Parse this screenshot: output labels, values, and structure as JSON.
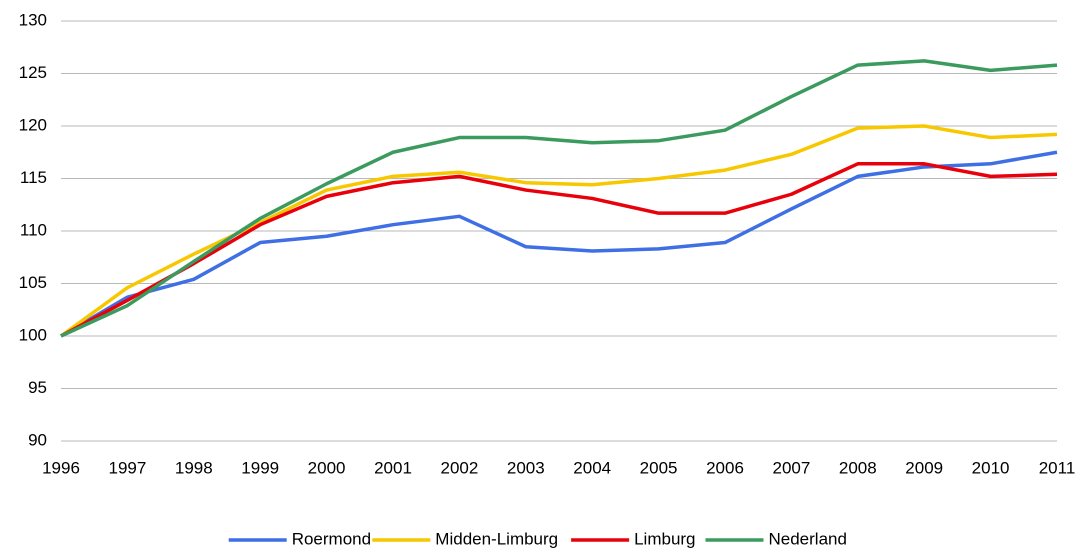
{
  "chart_data": {
    "type": "line",
    "categories": [
      "1996",
      "1997",
      "1998",
      "1999",
      "2000",
      "2001",
      "2002",
      "2003",
      "2004",
      "2005",
      "2006",
      "2007",
      "2008",
      "2009",
      "2010",
      "2011"
    ],
    "series": [
      {
        "name": "Roermond",
        "color": "#3f6fe4",
        "values": [
          100,
          103.7,
          105.4,
          108.9,
          109.5,
          110.6,
          111.4,
          108.5,
          108.1,
          108.3,
          108.9,
          112.1,
          115.2,
          116.1,
          116.4,
          117.5
        ]
      },
      {
        "name": "Midden-Limburg",
        "color": "#f7c800",
        "values": [
          100,
          104.6,
          107.8,
          110.8,
          113.9,
          115.2,
          115.6,
          114.6,
          114.4,
          115.0,
          115.8,
          117.3,
          119.8,
          120.0,
          118.9,
          119.2
        ]
      },
      {
        "name": "Limburg",
        "color": "#e8000b",
        "values": [
          100,
          103.4,
          106.9,
          110.6,
          113.3,
          114.6,
          115.2,
          113.9,
          113.1,
          111.7,
          111.7,
          113.5,
          116.4,
          116.4,
          115.2,
          115.4
        ]
      },
      {
        "name": "Nederland",
        "color": "#3b9a5e",
        "values": [
          100,
          102.9,
          107.1,
          111.2,
          114.5,
          117.5,
          118.9,
          118.9,
          118.4,
          118.6,
          119.6,
          122.8,
          125.8,
          126.2,
          125.3,
          125.8
        ]
      }
    ],
    "ylim": [
      90,
      130
    ],
    "yticks": [
      90,
      95,
      100,
      105,
      110,
      115,
      120,
      125,
      130
    ],
    "grid": true,
    "legend": "bottom"
  }
}
